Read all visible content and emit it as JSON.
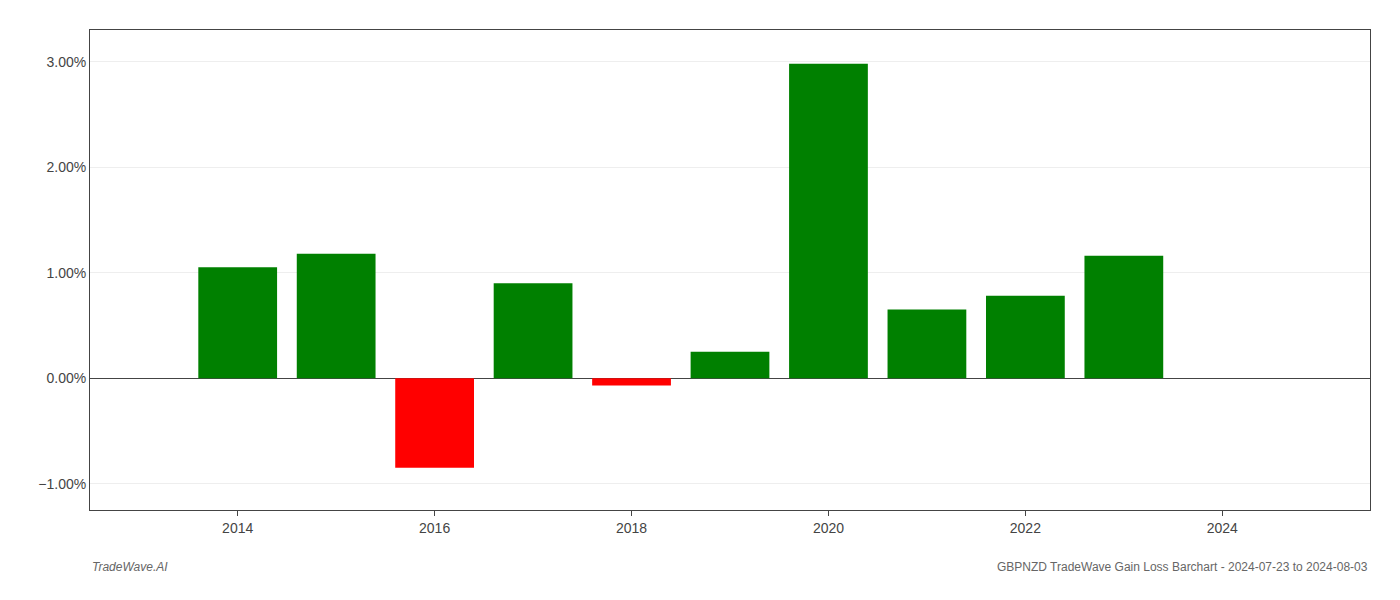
{
  "chart_data": {
    "type": "bar",
    "x": [
      2014,
      2015,
      2016,
      2017,
      2018,
      2019,
      2020,
      2021,
      2022,
      2023
    ],
    "values": [
      1.05,
      1.18,
      -0.85,
      0.9,
      -0.07,
      0.25,
      2.98,
      0.65,
      0.78,
      1.16
    ],
    "colors": [
      "#008000",
      "#008000",
      "#ff0000",
      "#008000",
      "#ff0000",
      "#008000",
      "#008000",
      "#008000",
      "#008000",
      "#008000"
    ],
    "xlim": [
      2012.5,
      2025.5
    ],
    "xticks": [
      2014,
      2016,
      2018,
      2020,
      2022,
      2024
    ],
    "ylim": [
      -1.25,
      3.3
    ],
    "yticks": [
      {
        "value": -1.0,
        "label": "−1.00%"
      },
      {
        "value": 0.0,
        "label": "0.00%"
      },
      {
        "value": 1.0,
        "label": "1.00%"
      },
      {
        "value": 2.0,
        "label": "2.00%"
      },
      {
        "value": 3.0,
        "label": "3.00%"
      }
    ],
    "grid": true,
    "annotations": [
      "TradeWave.AI",
      "GBPNZD TradeWave Gain Loss Barchart - 2024-07-23 to 2024-08-03"
    ]
  }
}
